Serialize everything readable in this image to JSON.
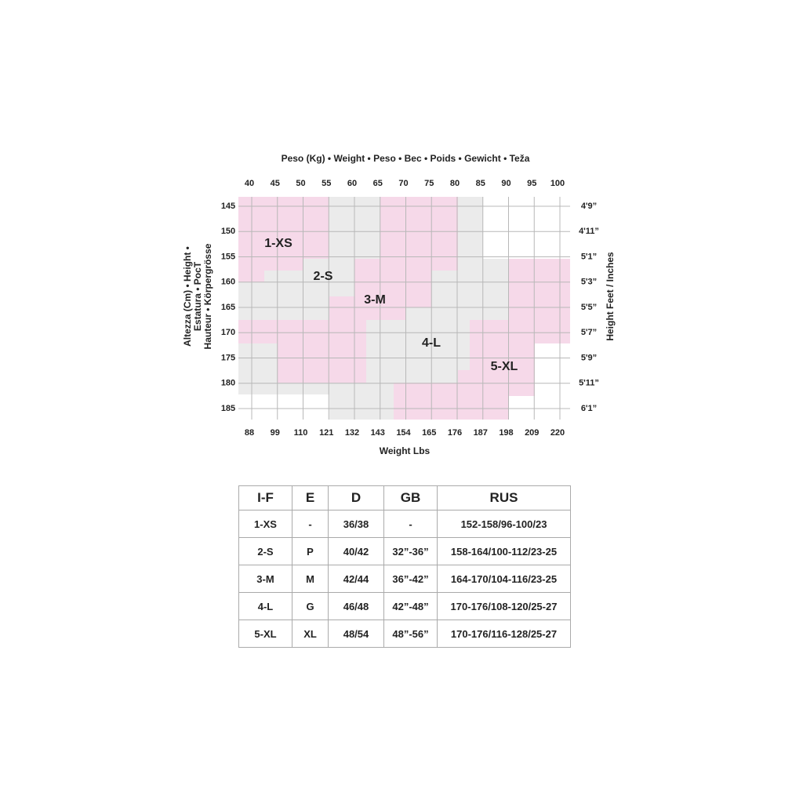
{
  "top_axis": {
    "title": "Peso (Kg) • Weight • Peso • Bec • Poids • Gewicht • Teža",
    "ticks": [
      40,
      45,
      50,
      55,
      60,
      65,
      70,
      75,
      80,
      85,
      90,
      95,
      100
    ]
  },
  "bottom_axis": {
    "title": "Weight Lbs",
    "ticks": [
      88,
      99,
      110,
      121,
      132,
      143,
      154,
      165,
      176,
      187,
      198,
      209,
      220
    ]
  },
  "left_axis": {
    "title": [
      "Altezza (Cm) • Height •",
      "Estatura • PocT",
      "Hauteur • Körpergrösse"
    ],
    "ticks": [
      145,
      150,
      155,
      160,
      165,
      170,
      175,
      180,
      185
    ]
  },
  "right_axis": {
    "title": "Height Feet / Inches",
    "ticks": [
      "4'9”",
      "4'11”",
      "5'1”",
      "5'3”",
      "5'5”",
      "5'7”",
      "5'9”",
      "5'11”",
      "6'1”"
    ]
  },
  "zones": [
    "1-XS",
    "2-S",
    "3-M",
    "4-L",
    "5-XL"
  ],
  "table": {
    "header": [
      "I-F",
      "E",
      "D",
      "GB",
      "RUS"
    ],
    "rows": [
      [
        "1-XS",
        "-",
        "36/38",
        "-",
        "152-158/96-100/23"
      ],
      [
        "2-S",
        "P",
        "40/42",
        "32”-36”",
        "158-164/100-112/23-25"
      ],
      [
        "3-M",
        "M",
        "42/44",
        "36”-42”",
        "164-170/104-116/23-25"
      ],
      [
        "4-L",
        "G",
        "46/48",
        "42”-48”",
        "170-176/108-120/25-27"
      ],
      [
        "5-XL",
        "XL",
        "48/54",
        "48”-56”",
        "170-176/116-128/25-27"
      ]
    ]
  }
}
